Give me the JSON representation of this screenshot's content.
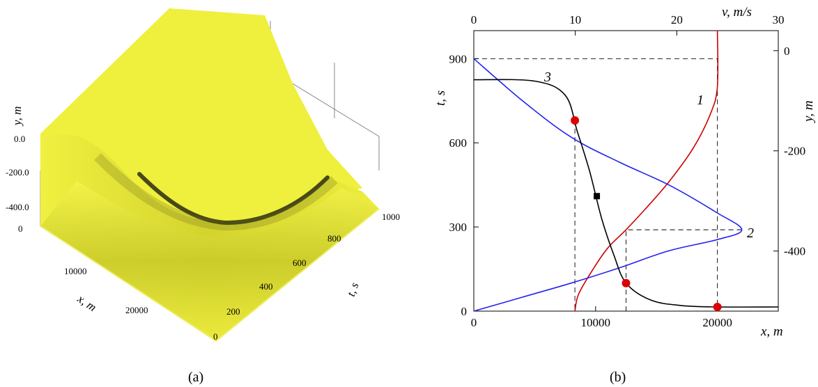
{
  "panel_a": {
    "caption": "(a)",
    "z_label": "y, m",
    "x_label": "x, m",
    "t_label": "t, s",
    "z_ticks": [
      "0.0",
      "-200.0",
      "-400.0"
    ],
    "x_ticks": [
      "0",
      "10000",
      "20000"
    ],
    "t_ticks": [
      "0",
      "200",
      "400",
      "600",
      "800",
      "1000"
    ],
    "surface_color": "#eded3c"
  },
  "panel_b": {
    "caption": "(b)",
    "y_left_label": "t, s",
    "y_right_label": "y, m",
    "x_top_label": "v, m/s",
    "x_bottom_label": "x, m",
    "curve_labels": [
      "1",
      "2",
      "3"
    ]
  },
  "chart_data": [
    {
      "type": "surface",
      "title": "",
      "axes": {
        "x": "x, m",
        "t": "t, s",
        "z": "y, m"
      },
      "xlim": [
        0,
        25000
      ],
      "tlim": [
        0,
        1000
      ],
      "zlim": [
        -500,
        0
      ],
      "x_ticks": [
        0,
        10000,
        20000
      ],
      "t_ticks": [
        0,
        200,
        400,
        600,
        800,
        1000
      ],
      "z_ticks": [
        0,
        -200,
        -400
      ]
    },
    {
      "type": "line",
      "title": "",
      "xlabel_bottom": "x, m",
      "xlabel_top": "v, m/s",
      "ylabel_left": "t, s",
      "ylabel_right": "y, m",
      "xlim_bottom": [
        0,
        25000
      ],
      "xlim_top": [
        0,
        30
      ],
      "ylim_left": [
        0,
        1000
      ],
      "ylim_right": [
        -520,
        40
      ],
      "x_ticks_bottom": [
        0,
        10000,
        20000
      ],
      "x_ticks_top": [
        0,
        10,
        20,
        30
      ],
      "y_ticks_left": [
        0,
        300,
        600,
        900
      ],
      "y_ticks_right": [
        0,
        -200,
        -400
      ],
      "series": [
        {
          "name": "1",
          "color": "#cc0000",
          "x": [
            8300,
            8600,
            9800,
            11000,
            12500,
            14000,
            16000,
            18000,
            19400,
            20000,
            20000
          ],
          "y": [
            0,
            60,
            150,
            225,
            290,
            360,
            460,
            580,
            700,
            800,
            1000
          ]
        },
        {
          "name": "2",
          "color": "#2222ee",
          "x": [
            0,
            4000,
            8000,
            12000,
            16000,
            20000,
            22000,
            20000,
            16000,
            12000,
            8000,
            4000,
            0
          ],
          "y": [
            0,
            50,
            100,
            155,
            215,
            255,
            290,
            350,
            450,
            530,
            620,
            750,
            900
          ]
        },
        {
          "name": "3",
          "color": "#000000",
          "x": [
            0,
            5000,
            7500,
            8500,
            9500,
            10500,
            11500,
            12500,
            14500,
            17000,
            20000,
            25000
          ],
          "y": [
            825,
            820,
            770,
            640,
            500,
            330,
            200,
            100,
            40,
            20,
            15,
            15
          ]
        }
      ],
      "markers": [
        {
          "x": 8300,
          "y": 680,
          "shape": "circle",
          "color": "#dd0000"
        },
        {
          "x": 12500,
          "y": 100,
          "shape": "circle",
          "color": "#dd0000"
        },
        {
          "x": 20000,
          "y": 15,
          "shape": "circle",
          "color": "#dd0000"
        },
        {
          "x": 10100,
          "y": 410,
          "shape": "square",
          "color": "#000000"
        }
      ]
    }
  ]
}
